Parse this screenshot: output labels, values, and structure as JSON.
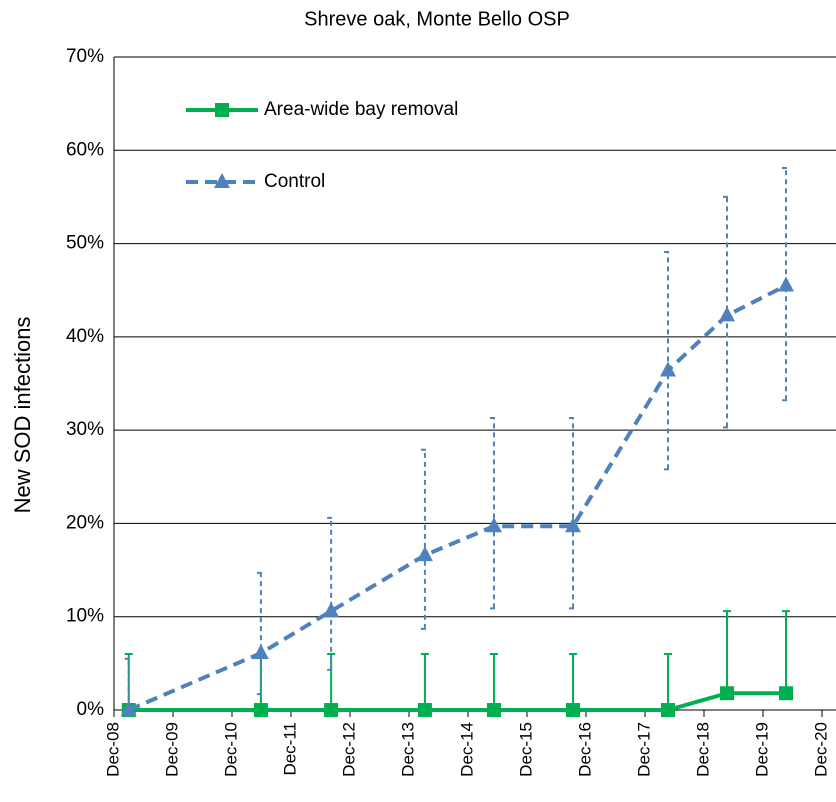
{
  "chart_data": {
    "type": "line",
    "title": "Shreve oak, Monte Bello OSP",
    "ylabel": "New SOD infections",
    "xlim": [
      2008.92,
      2020.92
    ],
    "xticks": [
      {
        "value": 2008.92,
        "label": "Dec-08"
      },
      {
        "value": 2009.92,
        "label": "Dec-09"
      },
      {
        "value": 2010.92,
        "label": "Dec-10"
      },
      {
        "value": 2011.92,
        "label": "Dec-11"
      },
      {
        "value": 2012.92,
        "label": "Dec-12"
      },
      {
        "value": 2013.92,
        "label": "Dec-13"
      },
      {
        "value": 2014.92,
        "label": "Dec-14"
      },
      {
        "value": 2015.92,
        "label": "Dec-15"
      },
      {
        "value": 2016.92,
        "label": "Dec-16"
      },
      {
        "value": 2017.92,
        "label": "Dec-17"
      },
      {
        "value": 2018.92,
        "label": "Dec-18"
      },
      {
        "value": 2019.92,
        "label": "Dec-19"
      },
      {
        "value": 2020.92,
        "label": "Dec-20"
      }
    ],
    "ylim": [
      0,
      70
    ],
    "yticks": [
      {
        "value": 0,
        "label": "0%"
      },
      {
        "value": 10,
        "label": "10%"
      },
      {
        "value": 20,
        "label": "20%"
      },
      {
        "value": 30,
        "label": "30%"
      },
      {
        "value": 40,
        "label": "40%"
      },
      {
        "value": 50,
        "label": "50%"
      },
      {
        "value": 60,
        "label": "60%"
      },
      {
        "value": 70,
        "label": "70%"
      }
    ],
    "grid": true,
    "legend": "upper left",
    "x": [
      2009.17,
      2011.41,
      2012.6,
      2014.19,
      2015.36,
      2016.7,
      2018.31,
      2019.31,
      2020.31
    ],
    "series": [
      {
        "name": "Area-wide bay removal",
        "color": "#00b050",
        "dashed": false,
        "marker": "square",
        "values": [
          0,
          0,
          0,
          0,
          0,
          0,
          0,
          1.8,
          1.8
        ],
        "lower": [
          0,
          0,
          0,
          0,
          0,
          0,
          0,
          1.8,
          1.8
        ],
        "upper": [
          6,
          6,
          6,
          6,
          6,
          6,
          6,
          10.6,
          10.6
        ]
      },
      {
        "name": "Control",
        "color": "#4f81bd",
        "dashed": true,
        "marker": "triangle",
        "values": [
          0,
          6.1,
          10.6,
          16.6,
          19.7,
          19.7,
          36.4,
          42.3,
          45.5
        ],
        "lower": [
          0,
          1.7,
          4.3,
          8.7,
          10.9,
          10.9,
          25.8,
          30.3,
          33.2
        ],
        "upper": [
          5.5,
          14.7,
          20.6,
          27.9,
          31.3,
          31.3,
          49.1,
          55,
          58.1
        ]
      }
    ]
  }
}
